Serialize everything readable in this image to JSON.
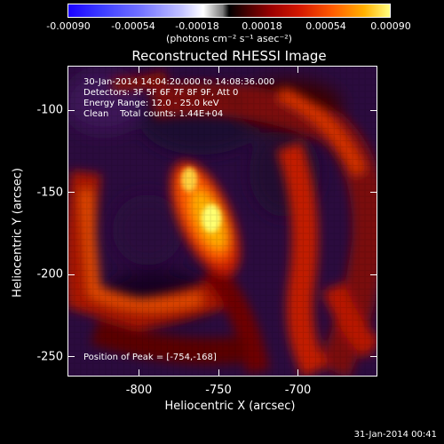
{
  "colorbar": {
    "ticks": [
      "-0.00090",
      "-0.00054",
      "-0.00018",
      "0.00018",
      "0.00054",
      "0.00090"
    ],
    "units": "(photons cm⁻² s⁻¹ asec⁻²)"
  },
  "title": "Reconstructed RHESSI Image",
  "annotations": {
    "time_range": "30-Jan-2014 14:04:20.000 to 14:08:36.000",
    "detectors": "Detectors: 3F 5F 6F 7F 8F 9F, Att 0",
    "energy_range": "Energy Range: 12.0 - 25.0 keV",
    "clean": "Clean    Total counts: 1.44E+04",
    "peak": "Position of Peak = [-754,-168]"
  },
  "axes": {
    "xlabel": "Heliocentric X (arcsec)",
    "ylabel": "Heliocentric Y (arcsec)",
    "xticks": [
      {
        "label": "-800",
        "v": -800
      },
      {
        "label": "-750",
        "v": -750
      },
      {
        "label": "-700",
        "v": -700
      }
    ],
    "yticks": [
      {
        "label": "-100",
        "v": -100
      },
      {
        "label": "-150",
        "v": -150
      },
      {
        "label": "-200",
        "v": -200
      },
      {
        "label": "-250",
        "v": -250
      }
    ],
    "xlim": [
      -845,
      -650
    ],
    "ylim": [
      -262,
      -73
    ]
  },
  "timestamp": "31-Jan-2014 00:41"
}
